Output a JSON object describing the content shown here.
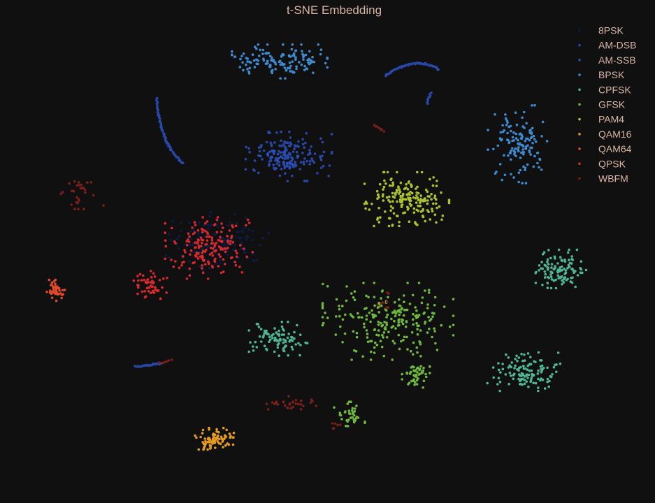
{
  "chart_data": {
    "type": "scatter",
    "title": "t-SNE Embedding",
    "xlabel": "",
    "ylabel": "",
    "axes_visible": false,
    "grid": false,
    "legend_position": "top-right",
    "text_color": "#d8b6a6",
    "background": "#111010",
    "series": [
      {
        "name": "8PSK",
        "color": "#0b1c45",
        "clusters": [
          {
            "shape": "blob",
            "center": [
              312,
              345
            ],
            "spread": [
              68,
              38
            ],
            "count": 130
          }
        ]
      },
      {
        "name": "AM-DSB",
        "color": "#2848a8",
        "clusters": [
          {
            "shape": "blob",
            "center": [
              413,
              224
            ],
            "spread": [
              56,
              32
            ],
            "count": 160
          },
          {
            "shape": "curve",
            "points": [
              [
                224,
                140
              ],
              [
                227,
                185
              ],
              [
                240,
                215
              ],
              [
                262,
                234
              ]
            ],
            "count": 70
          },
          {
            "shape": "curve",
            "points": [
              [
                551,
                108
              ],
              [
                575,
                92
              ],
              [
                605,
                83
              ],
              [
                628,
                100
              ]
            ],
            "count": 60
          },
          {
            "shape": "curve",
            "points": [
              [
                611,
                148
              ],
              [
                616,
                133
              ]
            ],
            "count": 10
          },
          {
            "shape": "curve",
            "points": [
              [
                193,
                525
              ],
              [
                218,
                522
              ],
              [
                232,
                520
              ]
            ],
            "count": 25
          }
        ]
      },
      {
        "name": "AM-SSB",
        "color": "#2b50b9",
        "clusters": [
          {
            "shape": "blob",
            "center": [
              395,
              225
            ],
            "spread": [
              30,
              20
            ],
            "count": 25
          }
        ]
      },
      {
        "name": "BPSK",
        "color": "#3e8ad0",
        "clusters": [
          {
            "shape": "blob",
            "center": [
              400,
              88
            ],
            "spread": [
              62,
              22
            ],
            "count": 140
          },
          {
            "shape": "blob",
            "center": [
              742,
              205
            ],
            "spread": [
              40,
              52
            ],
            "count": 130
          }
        ]
      },
      {
        "name": "CPFSK",
        "color": "#4fb694",
        "clusters": [
          {
            "shape": "blob",
            "center": [
              800,
              385
            ],
            "spread": [
              35,
              25
            ],
            "count": 110
          },
          {
            "shape": "blob",
            "center": [
              750,
              532
            ],
            "spread": [
              48,
              25
            ],
            "count": 120
          },
          {
            "shape": "blob",
            "center": [
              398,
              485
            ],
            "spread": [
              38,
              22
            ],
            "count": 90
          }
        ]
      },
      {
        "name": "GFSK",
        "color": "#6fb83e",
        "clusters": [
          {
            "shape": "blob",
            "center": [
              555,
              460
            ],
            "spread": [
              85,
              50
            ],
            "count": 230
          },
          {
            "shape": "blob",
            "center": [
              595,
              535
            ],
            "spread": [
              18,
              18
            ],
            "count": 50
          },
          {
            "shape": "blob",
            "center": [
              500,
              595
            ],
            "spread": [
              20,
              18
            ],
            "count": 40
          }
        ]
      },
      {
        "name": "PAM4",
        "color": "#a9c22e",
        "clusters": [
          {
            "shape": "blob",
            "center": [
              582,
              285
            ],
            "spread": [
              55,
              35
            ],
            "count": 190
          }
        ]
      },
      {
        "name": "QAM16",
        "color": "#e59b21",
        "clusters": [
          {
            "shape": "blob",
            "center": [
              305,
              628
            ],
            "spread": [
              28,
              14
            ],
            "count": 80
          }
        ]
      },
      {
        "name": "QAM64",
        "color": "#e0492a",
        "clusters": [
          {
            "shape": "blob",
            "center": [
              80,
              416
            ],
            "spread": [
              12,
              14
            ],
            "count": 45
          }
        ]
      },
      {
        "name": "QPSK",
        "color": "#d9292c",
        "clusters": [
          {
            "shape": "blob",
            "center": [
              300,
              355
            ],
            "spread": [
              58,
              40
            ],
            "count": 170
          },
          {
            "shape": "blob",
            "center": [
              215,
              410
            ],
            "spread": [
              22,
              20
            ],
            "count": 55
          }
        ]
      },
      {
        "name": "WBFM",
        "color": "#7a1f1a",
        "clusters": [
          {
            "shape": "blob",
            "center": [
              115,
              275
            ],
            "spread": [
              30,
              22
            ],
            "count": 30
          },
          {
            "shape": "blob",
            "center": [
              420,
              578
            ],
            "spread": [
              35,
              10
            ],
            "count": 30
          },
          {
            "shape": "curve",
            "points": [
              [
                536,
                180
              ],
              [
                549,
                187
              ]
            ],
            "count": 8
          },
          {
            "shape": "blob",
            "center": [
              550,
              430
            ],
            "spread": [
              15,
              15
            ],
            "count": 8
          },
          {
            "shape": "blob",
            "center": [
              480,
              610
            ],
            "spread": [
              15,
              12
            ],
            "count": 6
          },
          {
            "shape": "curve",
            "points": [
              [
                228,
                520
              ],
              [
                245,
                515
              ]
            ],
            "count": 6
          }
        ]
      }
    ]
  }
}
